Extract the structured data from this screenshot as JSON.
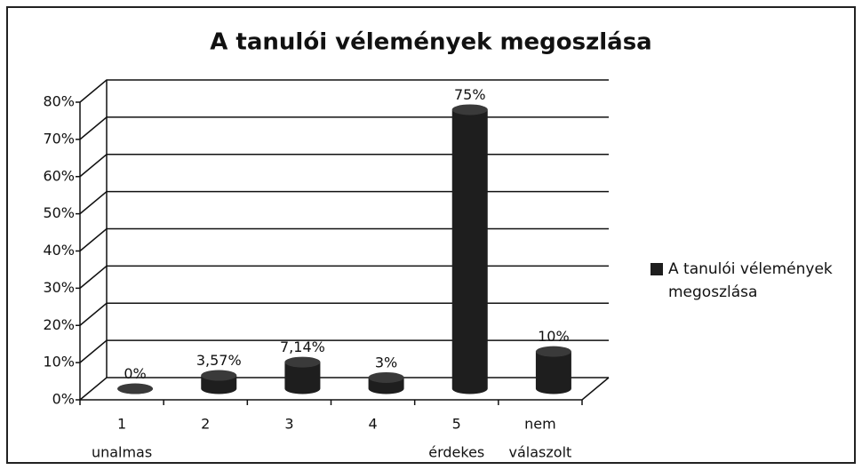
{
  "chart_data": {
    "type": "bar3d",
    "title": "A tanulói vélemények megoszlása",
    "categories": [
      [
        "1",
        "unalmas"
      ],
      [
        "2"
      ],
      [
        "3"
      ],
      [
        "4"
      ],
      [
        "5",
        "érdekes"
      ],
      [
        "nem",
        "válaszolt"
      ]
    ],
    "series": [
      {
        "name": "A tanulói vélemények megoszlása",
        "color": "#1e1e1e",
        "values": [
          0,
          3.57,
          7.14,
          3,
          75,
          10
        ],
        "value_labels": [
          "0%",
          "3,57%",
          "7,14%",
          "3%",
          "75%",
          "10%"
        ]
      }
    ],
    "ylim": [
      0,
      80
    ],
    "yticks": [
      {
        "value": 0,
        "label": "0%"
      },
      {
        "value": 10,
        "label": "10%"
      },
      {
        "value": 20,
        "label": "20%"
      },
      {
        "value": 30,
        "label": "30%"
      },
      {
        "value": 40,
        "label": "40%"
      },
      {
        "value": 50,
        "label": "50%"
      },
      {
        "value": 60,
        "label": "60%"
      },
      {
        "value": 70,
        "label": "70%"
      },
      {
        "value": 80,
        "label": "80%"
      }
    ],
    "grid": true,
    "legend": "right"
  }
}
